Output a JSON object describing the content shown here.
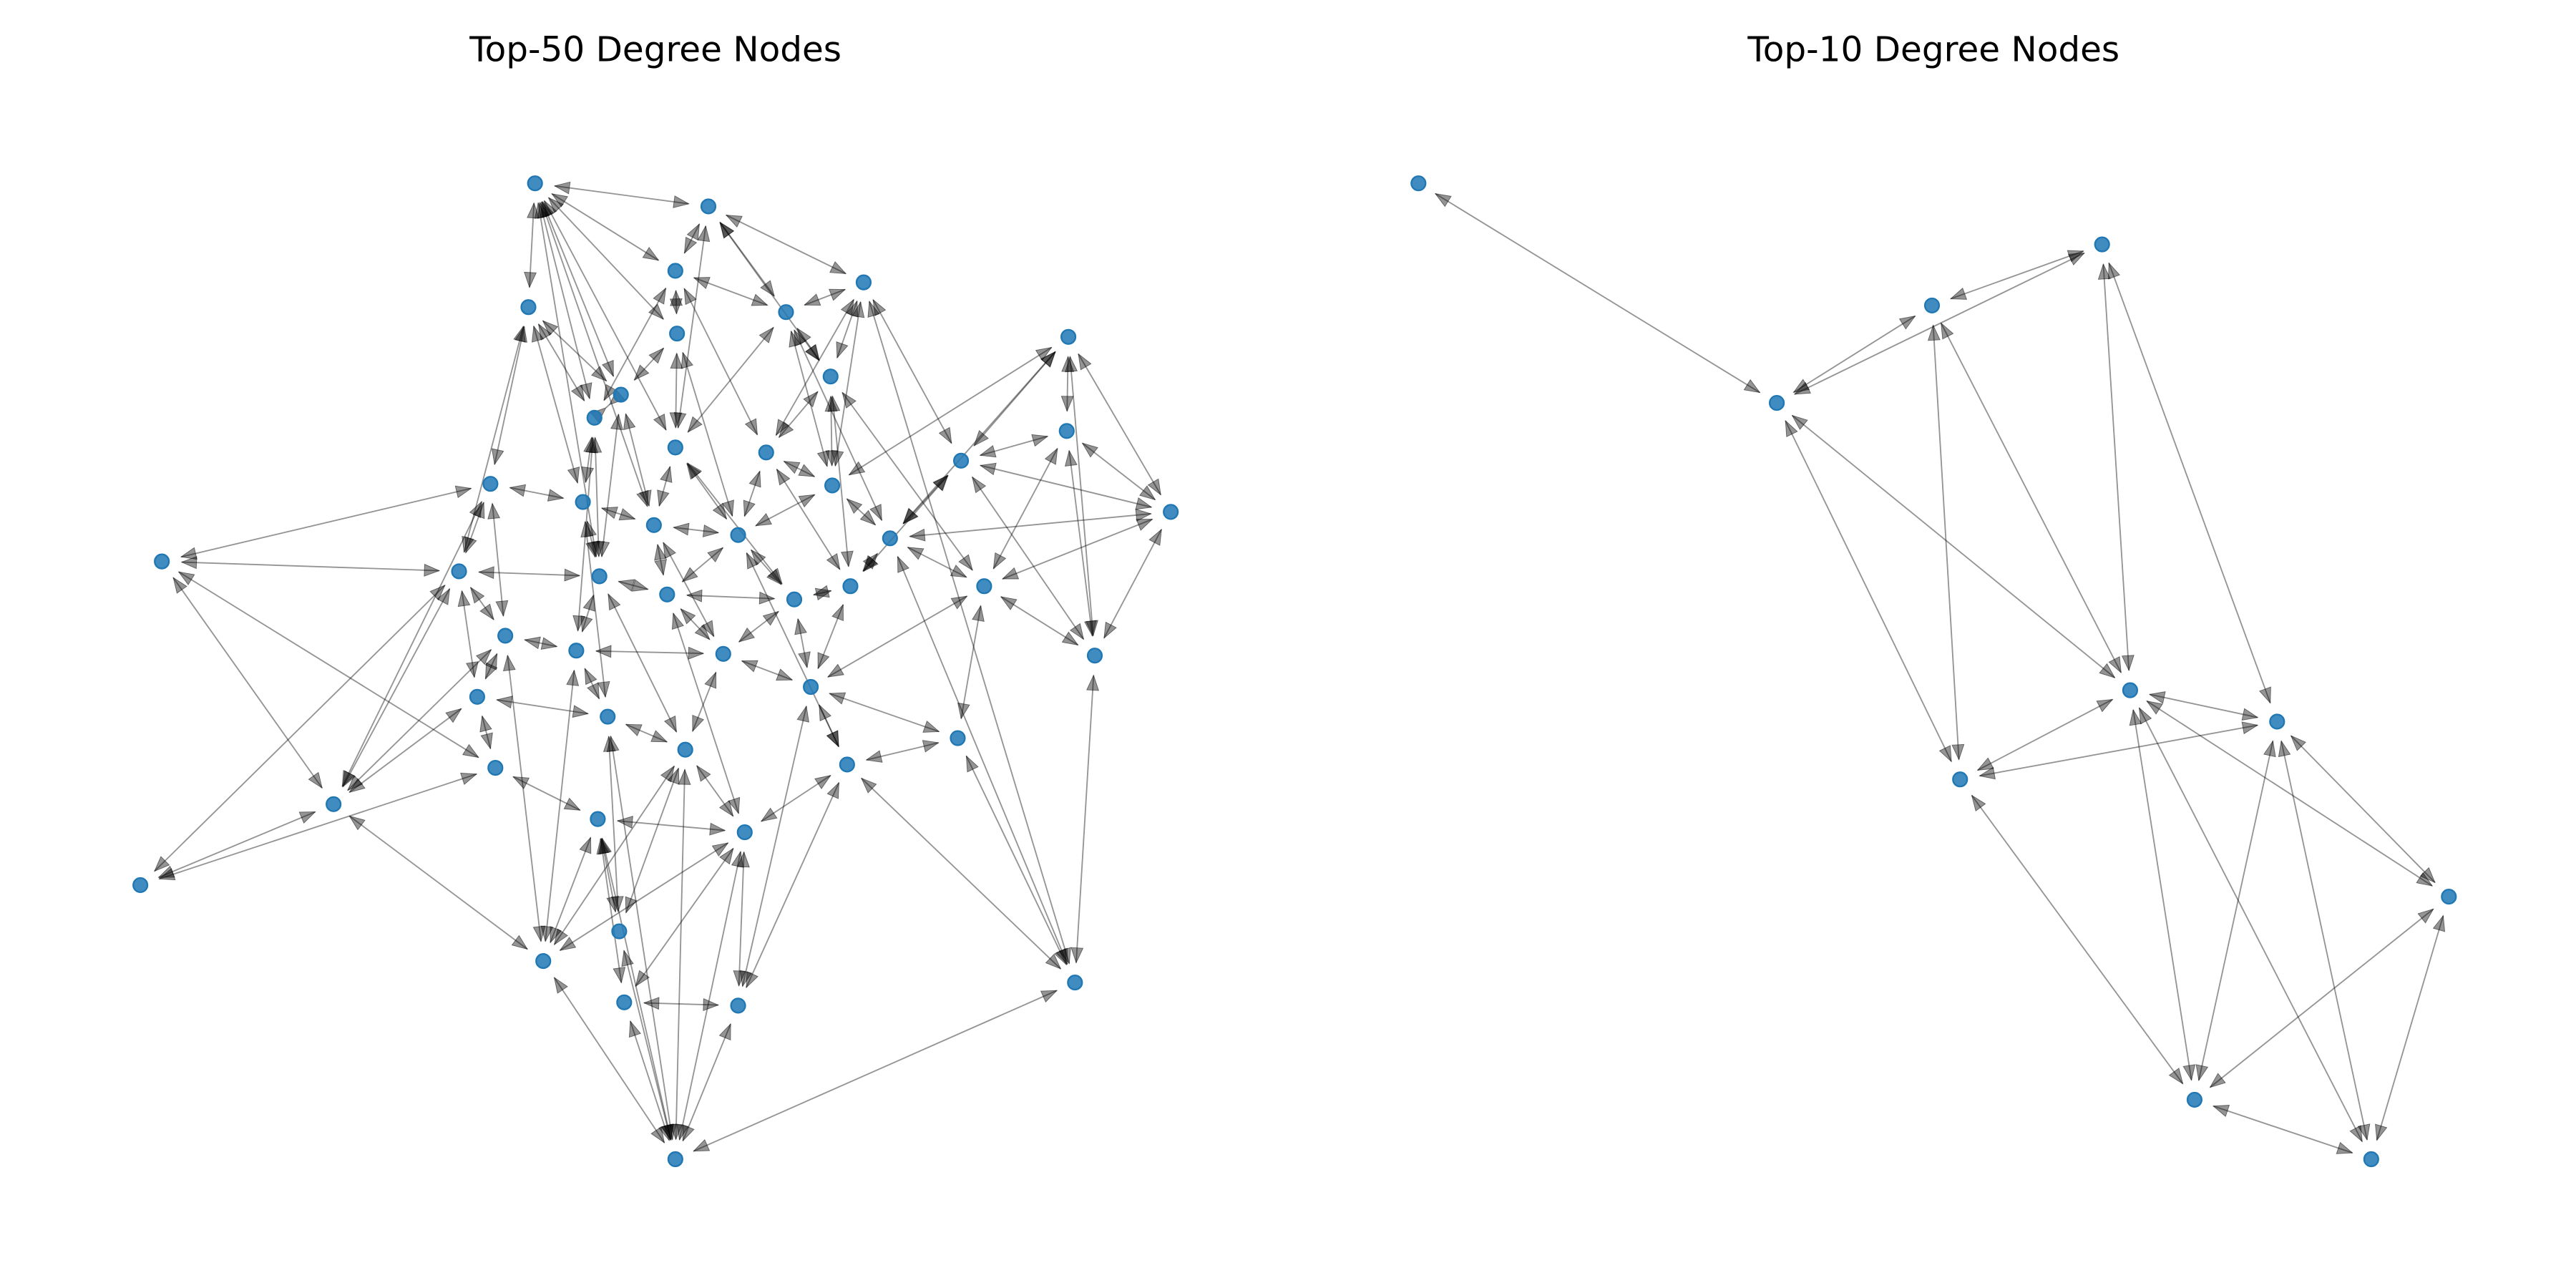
{
  "colors": {
    "node": "#1f77b4",
    "edge": "#808080",
    "background": "#ffffff"
  },
  "chart_data": [
    {
      "type": "network",
      "directed": true,
      "title": "Top-50 Degree Nodes",
      "node_count": 50,
      "edges": [
        [
          22,
          23
        ],
        [
          22,
          15
        ],
        [
          22,
          40
        ],
        [
          22,
          37
        ],
        [
          43,
          23
        ],
        [
          43,
          40
        ],
        [
          43,
          37
        ],
        [
          40,
          15
        ],
        [
          40,
          23
        ],
        [
          40,
          34
        ],
        [
          40,
          45
        ],
        [
          40,
          29
        ],
        [
          49,
          46
        ],
        [
          49,
          45
        ],
        [
          49,
          47
        ],
        [
          49,
          48
        ],
        [
          49,
          44
        ],
        [
          49,
          36
        ],
        [
          49,
          41
        ],
        [
          49,
          42
        ],
        [
          49,
          35
        ],
        [
          46,
          3
        ],
        [
          46,
          39
        ],
        [
          46,
          32
        ],
        [
          46,
          38
        ],
        [
          46,
          21
        ],
        [
          18,
          7
        ],
        [
          18,
          11
        ],
        [
          18,
          32
        ],
        [
          18,
          27
        ],
        [
          18,
          14
        ],
        [
          18,
          21
        ],
        [
          32,
          7
        ],
        [
          32,
          11
        ],
        [
          32,
          27
        ],
        [
          32,
          14
        ],
        [
          45,
          41
        ],
        [
          45,
          42
        ],
        [
          45,
          36
        ],
        [
          45,
          29
        ],
        [
          45,
          30
        ],
        [
          47,
          48
        ],
        [
          47,
          42
        ],
        [
          47,
          41
        ],
        [
          48,
          33
        ],
        [
          48,
          38
        ],
        [
          48,
          42
        ],
        [
          44,
          41
        ],
        [
          44,
          35
        ],
        [
          44,
          36
        ],
        [
          0,
          4
        ],
        [
          0,
          2
        ],
        [
          0,
          6
        ],
        [
          0,
          9
        ],
        [
          0,
          10
        ],
        [
          0,
          12
        ],
        [
          0,
          19
        ],
        [
          0,
          24
        ],
        [
          0,
          1
        ],
        [
          1,
          3
        ],
        [
          1,
          5
        ],
        [
          1,
          2
        ],
        [
          1,
          8
        ],
        [
          1,
          12
        ],
        [
          2,
          6
        ],
        [
          2,
          5
        ],
        [
          2,
          10
        ],
        [
          3,
          5
        ],
        [
          3,
          8
        ],
        [
          3,
          13
        ],
        [
          3,
          14
        ],
        [
          4,
          9
        ],
        [
          4,
          15
        ],
        [
          4,
          17
        ],
        [
          4,
          10
        ],
        [
          5,
          8
        ],
        [
          5,
          12
        ],
        [
          5,
          16
        ],
        [
          6,
          12
        ],
        [
          6,
          9
        ],
        [
          7,
          14
        ],
        [
          7,
          11
        ],
        [
          7,
          16
        ],
        [
          7,
          21
        ],
        [
          8,
          13
        ],
        [
          8,
          16
        ],
        [
          8,
          26
        ],
        [
          9,
          10
        ],
        [
          9,
          19
        ],
        [
          10,
          17
        ],
        [
          10,
          24
        ],
        [
          11,
          14
        ],
        [
          11,
          27
        ],
        [
          12,
          19
        ],
        [
          12,
          20
        ],
        [
          13,
          16
        ],
        [
          13,
          20
        ],
        [
          14,
          21
        ],
        [
          14,
          26
        ],
        [
          15,
          17
        ],
        [
          15,
          23
        ],
        [
          15,
          29
        ],
        [
          16,
          20
        ],
        [
          16,
          21
        ],
        [
          17,
          24
        ],
        [
          17,
          19
        ],
        [
          19,
          25
        ],
        [
          19,
          20
        ],
        [
          20,
          28
        ],
        [
          20,
          25
        ],
        [
          21,
          26
        ],
        [
          21,
          27
        ],
        [
          23,
          24
        ],
        [
          23,
          29
        ],
        [
          23,
          34
        ],
        [
          24,
          25
        ],
        [
          24,
          30
        ],
        [
          25,
          28
        ],
        [
          25,
          31
        ],
        [
          26,
          28
        ],
        [
          26,
          33
        ],
        [
          27,
          39
        ],
        [
          27,
          33
        ],
        [
          28,
          31
        ],
        [
          28,
          33
        ],
        [
          29,
          30
        ],
        [
          29,
          34
        ],
        [
          30,
          35
        ],
        [
          30,
          31
        ],
        [
          31,
          36
        ],
        [
          31,
          33
        ],
        [
          33,
          38
        ],
        [
          34,
          37
        ],
        [
          34,
          35
        ],
        [
          35,
          36
        ],
        [
          36,
          42
        ],
        [
          37,
          41
        ],
        [
          38,
          39
        ],
        [
          38,
          42
        ],
        [
          39,
          33
        ],
        [
          41,
          42
        ],
        [
          3,
          16
        ],
        [
          6,
          20
        ],
        [
          9,
          24
        ],
        [
          2,
          13
        ],
        [
          12,
          28
        ],
        [
          19,
          31
        ],
        [
          5,
          21
        ],
        [
          10,
          30
        ],
        [
          17,
          35
        ],
        [
          24,
          36
        ],
        [
          25,
          42
        ],
        [
          20,
          38
        ],
        [
          13,
          26
        ],
        [
          8,
          27
        ],
        [
          4,
          23
        ]
      ]
    },
    {
      "type": "network",
      "directed": true,
      "title": "Top-10 Degree Nodes",
      "node_count": 10,
      "edges": [
        [
          0,
          1
        ],
        [
          1,
          2
        ],
        [
          1,
          3
        ],
        [
          2,
          3
        ],
        [
          2,
          6
        ],
        [
          2,
          4
        ],
        [
          3,
          4
        ],
        [
          3,
          5
        ],
        [
          1,
          4
        ],
        [
          1,
          6
        ],
        [
          4,
          5
        ],
        [
          4,
          6
        ],
        [
          6,
          5
        ],
        [
          6,
          8
        ],
        [
          4,
          8
        ],
        [
          4,
          9
        ],
        [
          4,
          7
        ],
        [
          5,
          8
        ],
        [
          5,
          9
        ],
        [
          5,
          7
        ],
        [
          7,
          8
        ],
        [
          7,
          9
        ],
        [
          8,
          9
        ]
      ]
    }
  ]
}
